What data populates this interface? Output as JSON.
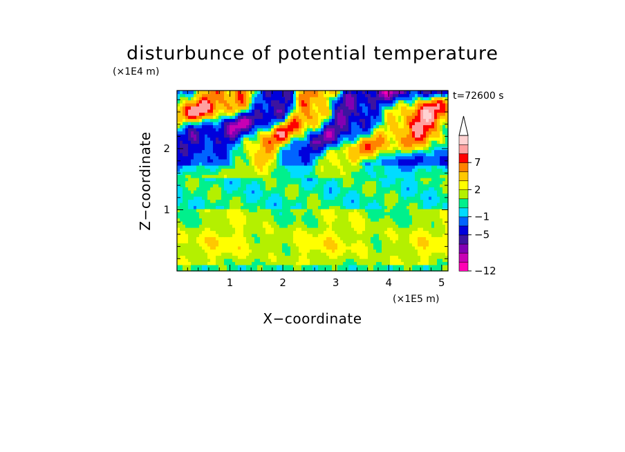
{
  "chart_data": {
    "type": "heatmap",
    "title": "disturbunce of potential temperature",
    "xlabel": "X−coordinate",
    "ylabel": "Z−coordinate",
    "x_unit": "(×1E5 m)",
    "y_unit": "(×1E4 m)",
    "time_label": "t=72600 s",
    "xlim": [
      0,
      5.12
    ],
    "ylim": [
      0,
      2.95
    ],
    "x_ticks": [
      1,
      2,
      3,
      4,
      5
    ],
    "y_ticks": [
      1,
      2
    ],
    "colorbar": {
      "levels": [
        -12,
        -11,
        -9,
        -7,
        -5,
        -3,
        -1,
        0,
        1,
        2,
        3,
        5,
        7,
        9,
        11
      ],
      "labeled": [
        -12,
        -5,
        -1,
        2,
        7
      ],
      "colors": [
        "#ff00b4",
        "#c800b4",
        "#8200b4",
        "#3c14a0",
        "#0000dc",
        "#0064ff",
        "#00dcff",
        "#00f08c",
        "#b4f000",
        "#ffff00",
        "#ffc800",
        "#ff8200",
        "#ff0000",
        "#ffa0a0",
        "#ffd2d2"
      ],
      "extend": "max"
    },
    "field": {
      "description_rows_top_to_bottom": "upper layer: alternating warm/cold wave bands; middle: near zero; lower: weakly positive",
      "z_bands": [
        {
          "z_range": [
            2.0,
            2.95
          ],
          "range": [
            -12,
            11
          ]
        },
        {
          "z_range": [
            1.0,
            2.0
          ],
          "range": [
            -5,
            9
          ]
        },
        {
          "z_range": [
            0.0,
            1.0
          ],
          "range": [
            0,
            3
          ]
        }
      ]
    }
  }
}
